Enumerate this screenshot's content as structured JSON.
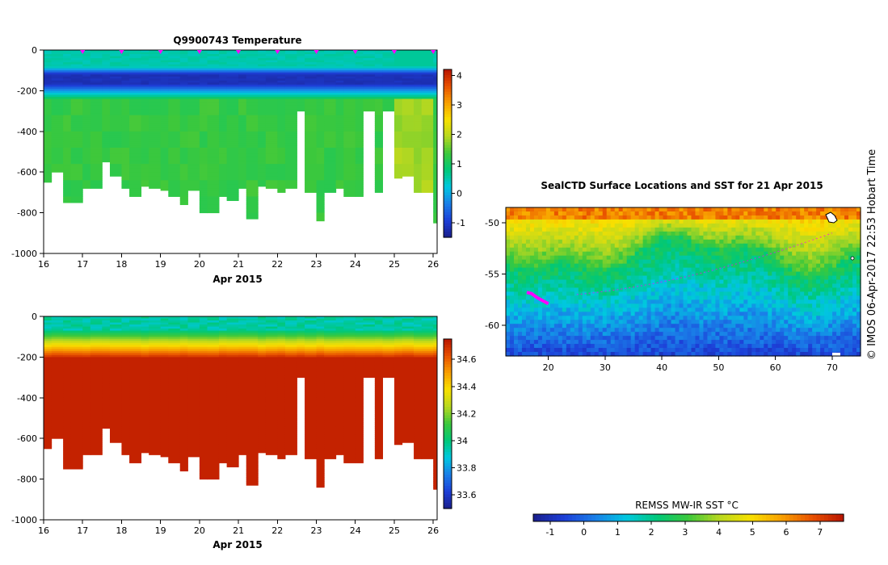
{
  "chart_data": [
    {
      "type": "heatmap",
      "id": "temperature",
      "title": "Q9900743  Temperature",
      "xlabel": "Apr 2015",
      "ylabel": "",
      "x_ticks": [
        "16",
        "17",
        "18",
        "19",
        "20",
        "21",
        "22",
        "23",
        "24",
        "25",
        "26"
      ],
      "x_ticks_value": [
        16,
        17,
        18,
        19,
        20,
        21,
        22,
        23,
        24,
        25,
        26
      ],
      "xlim": [
        16,
        26.1
      ],
      "ylim": [
        -1000,
        0
      ],
      "y_ticks": [
        "0",
        "-200",
        "-400",
        "-600",
        "-800",
        "-1000"
      ],
      "y_ticks_value": [
        0,
        -200,
        -400,
        -600,
        -800,
        -1000
      ],
      "colorbar_ticks": [
        "4",
        "3",
        "2",
        "1",
        "0",
        "-1"
      ],
      "colorbar_values": [
        4,
        3,
        2,
        1,
        0,
        -1
      ],
      "colorbar_range": [
        -1.5,
        4.2
      ],
      "profile_markers_day": [
        17,
        18,
        19,
        20,
        21,
        22,
        23,
        24,
        25,
        26
      ],
      "profile_days": [
        16.0,
        16.2,
        16.5,
        16.7,
        17.0,
        17.2,
        17.5,
        17.7,
        18.0,
        18.2,
        18.5,
        18.7,
        19.0,
        19.2,
        19.5,
        19.7,
        20.0,
        20.2,
        20.5,
        20.7,
        21.0,
        21.2,
        21.5,
        21.7,
        22.0,
        22.2,
        22.5,
        22.7,
        23.0,
        23.2,
        23.5,
        23.7,
        24.0,
        24.2,
        24.5,
        24.7,
        25.0,
        25.2,
        25.5,
        25.7,
        26.0
      ],
      "profile_max_depth_m": [
        650,
        600,
        750,
        750,
        680,
        680,
        550,
        620,
        680,
        720,
        670,
        680,
        690,
        720,
        760,
        690,
        800,
        800,
        720,
        740,
        680,
        830,
        670,
        680,
        700,
        680,
        300,
        700,
        840,
        700,
        680,
        720,
        720,
        300,
        700,
        300,
        630,
        620,
        700,
        700,
        850
      ],
      "description_values": {
        "surface_layer_C": 0.3,
        "cold_layer_depth_m": [
          -100,
          -160
        ],
        "cold_layer_C": -1.3,
        "deep_water_C": 1.2
      }
    },
    {
      "type": "heatmap",
      "id": "salinity",
      "title": "",
      "xlabel": "Apr 2015",
      "x_ticks": [
        "16",
        "17",
        "18",
        "19",
        "20",
        "21",
        "22",
        "23",
        "24",
        "25",
        "26"
      ],
      "x_ticks_value": [
        16,
        17,
        18,
        19,
        20,
        21,
        22,
        23,
        24,
        25,
        26
      ],
      "xlim": [
        16,
        26.1
      ],
      "ylim": [
        -1000,
        0
      ],
      "y_ticks": [
        "0",
        "-200",
        "-400",
        "-600",
        "-800",
        "-1000"
      ],
      "y_ticks_value": [
        0,
        -200,
        -400,
        -600,
        -800,
        -1000
      ],
      "colorbar_ticks": [
        "34.6",
        "34.4",
        "34.2",
        "34",
        "33.8",
        "33.6"
      ],
      "colorbar_values": [
        34.6,
        34.4,
        34.2,
        34.0,
        33.8,
        33.6
      ],
      "colorbar_range": [
        33.5,
        34.75
      ],
      "surface_salinity": 34.0,
      "deep_salinity": 34.7
    },
    {
      "type": "heatmap",
      "id": "sst_map",
      "title": "SealCTD Surface Locations and SST for 21 Apr 2015",
      "x_ticks": [
        "20",
        "30",
        "40",
        "50",
        "60",
        "70"
      ],
      "x_ticks_value": [
        20,
        30,
        40,
        50,
        60,
        70
      ],
      "xlim": [
        12.5,
        75
      ],
      "y_ticks": [
        "-50",
        "-55",
        "-60"
      ],
      "y_ticks_value": [
        -50,
        -55,
        -60
      ],
      "ylim": [
        -63,
        -48.5
      ],
      "track_points": [
        [
          16.2,
          -56.8
        ],
        [
          17,
          -56.9
        ],
        [
          18,
          -57.3
        ],
        [
          19,
          -57.6
        ],
        [
          20,
          -57.9
        ]
      ],
      "colorbar_label": "REMSS MW-IR SST °C",
      "colorbar_ticks": [
        "-1",
        "0",
        "1",
        "2",
        "3",
        "4",
        "5",
        "6",
        "7"
      ],
      "colorbar_values": [
        -1,
        0,
        1,
        2,
        3,
        4,
        5,
        6,
        7
      ],
      "colorbar_range": [
        -1.5,
        7.7
      ]
    }
  ],
  "side_label": "© IMOS 06-Apr-2017 22:53 Hobart Time",
  "colors": {
    "temp_scale": [
      "#1a1f8c",
      "#1d3fd8",
      "#1a7fe8",
      "#00c8e0",
      "#00c878",
      "#3cc83c",
      "#b8d820",
      "#f8e000",
      "#f8a000",
      "#e85000",
      "#b81400"
    ],
    "track": "#ff00ff"
  }
}
